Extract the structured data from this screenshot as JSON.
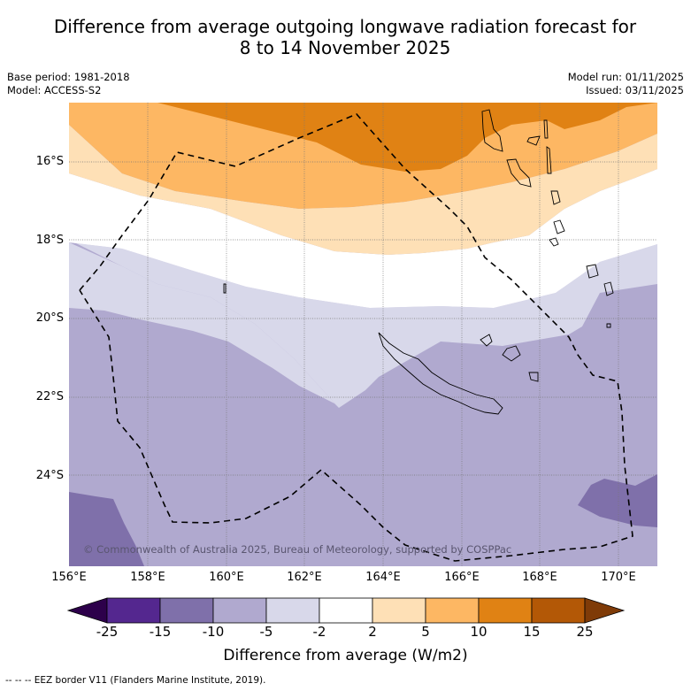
{
  "title_line1": "Difference from average outgoing longwave radiation forecast for",
  "title_line2": "8 to 14 November 2025",
  "meta": {
    "base_period": "Base period: 1981-2018",
    "model": "Model: ACCESS-S2",
    "model_run": "Model run: 01/11/2025",
    "issued": "Issued: 03/11/2025"
  },
  "map": {
    "region": "New Caledonia / Vanuatu",
    "lon_range": [
      156,
      171
    ],
    "lat_range": [
      -26.2,
      -14.4
    ],
    "x_ticks": [
      "156°E",
      "158°E",
      "160°E",
      "162°E",
      "164°E",
      "166°E",
      "168°E",
      "170°E"
    ],
    "y_ticks": [
      "16°S",
      "18°S",
      "20°S",
      "22°S",
      "24°S"
    ],
    "copyright": "© Commonwealth of Australia 2025, Bureau of Meteorology, supported by COSPPac",
    "eez_line": "dashed"
  },
  "colorbar": {
    "title": "Difference from average (W/m2)",
    "boundaries": [
      "-25",
      "-15",
      "-10",
      "-5",
      "-2",
      "2",
      "5",
      "10",
      "15",
      "25"
    ],
    "colors": [
      "#54278f",
      "#7f70aa",
      "#b0a9cf",
      "#d8d8ea",
      "#ffffff",
      "#fee0b6",
      "#fdb763",
      "#e08214",
      "#b35806"
    ],
    "extend_low_color": "#2d004b",
    "extend_high_color": "#7f3b08"
  },
  "footnote": "--  --  -- EEZ border V11 (Flanders Marine Institute, 2019)."
}
